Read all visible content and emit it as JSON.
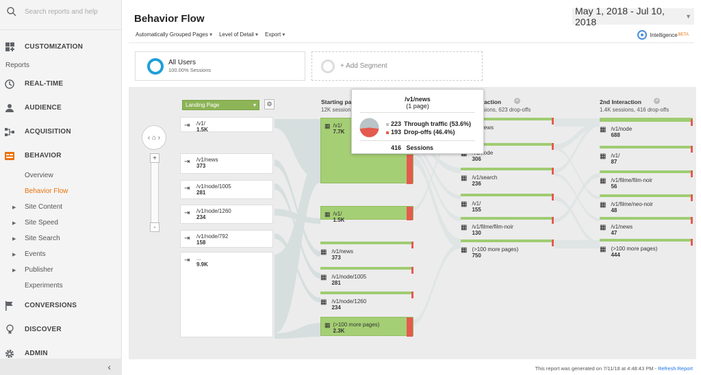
{
  "search": {
    "placeholder": "Search reports and help"
  },
  "sidebar": {
    "customization": "CUSTOMIZATION",
    "reports_label": "Reports",
    "realtime": "REAL-TIME",
    "audience": "AUDIENCE",
    "acquisition": "ACQUISITION",
    "behavior": "BEHAVIOR",
    "behavior_sub": [
      "Overview",
      "Behavior Flow",
      "Site Content",
      "Site Speed",
      "Site Search",
      "Events",
      "Publisher",
      "Experiments"
    ],
    "conversions": "CONVERSIONS",
    "discover": "DISCOVER",
    "admin": "ADMIN"
  },
  "header": {
    "title": "Behavior Flow",
    "date_range": "May 1, 2018 - Jul 10, 2018",
    "toolbar": [
      "Automatically Grouped Pages",
      "Level of Detail",
      "Export"
    ],
    "intelligence": "Intelligence",
    "beta": "BETA"
  },
  "segment": {
    "name": "All Users",
    "sessions": "100.00% Sessions",
    "add": "+ Add Segment"
  },
  "flow": {
    "landing_select": "Landing Page",
    "landing_pages": [
      {
        "name": "/v1/",
        "value": "1.5K"
      },
      {
        "name": "/v1/news",
        "value": "373"
      },
      {
        "name": "/v1/node/1005",
        "value": "281"
      },
      {
        "name": "/v1/node/1260",
        "value": "234"
      },
      {
        "name": "/v1/node/792",
        "value": "158"
      },
      {
        "name": "...",
        "value": "9.9K"
      }
    ],
    "starting": {
      "head": "Starting pages",
      "sub": "12K sessions",
      "nodes": [
        {
          "name": "/v1/",
          "value": "7.7K"
        },
        {
          "name": "/v1/",
          "value": "1.5K"
        },
        {
          "name": "/v1/news",
          "value": "373"
        },
        {
          "name": "/v1/node/1005",
          "value": "281"
        },
        {
          "name": "/v1/node/1260",
          "value": "234"
        },
        {
          "name": "(>100 more pages)",
          "value": "2.3K"
        }
      ]
    },
    "first": {
      "head": "1st Interaction",
      "sub": "2.1K sessions, 623 drop-offs",
      "nodes": [
        {
          "name": "/v1/news",
          "value": ""
        },
        {
          "name": "/v1/node",
          "value": "306"
        },
        {
          "name": "/v1/search",
          "value": "236"
        },
        {
          "name": "/v1/",
          "value": "155"
        },
        {
          "name": "/v1/filme/film-noir",
          "value": "130"
        },
        {
          "name": "(>100 more pages)",
          "value": "750"
        }
      ]
    },
    "second": {
      "head": "2nd Interaction",
      "sub": "1.4K sessions, 416 drop-offs",
      "nodes": [
        {
          "name": "/v1/node",
          "value": "688"
        },
        {
          "name": "/v1/",
          "value": "87"
        },
        {
          "name": "/v1/filme/film-noir",
          "value": "56"
        },
        {
          "name": "/v1/filme/neo-noir",
          "value": "48"
        },
        {
          "name": "/v1/news",
          "value": "47"
        },
        {
          "name": "(>100 more pages)",
          "value": "444"
        }
      ]
    }
  },
  "tooltip": {
    "page": "/v1/news",
    "count": "(1 page)",
    "through_num": "223",
    "through_label": "Through traffic (53.6%)",
    "drop_num": "193",
    "drop_label": "Drop-offs (46.4%)",
    "total_num": "416",
    "total_label": "Sessions",
    "through_color": "#b8c4c8",
    "drop_color": "#e55a4e"
  },
  "footer": {
    "text": "This report was generated on 7/11/18 at 4:48:43 PM - ",
    "link": "Refresh Report"
  }
}
